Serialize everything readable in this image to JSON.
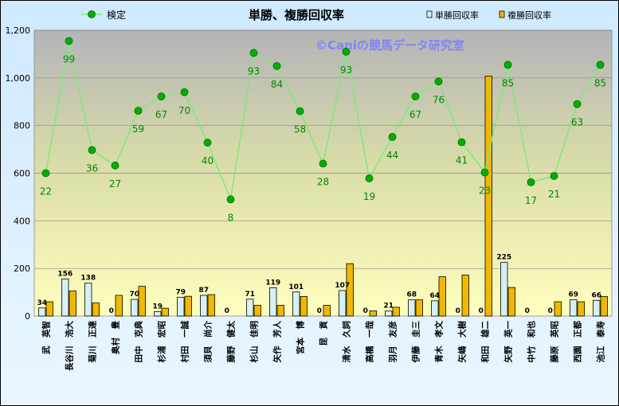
{
  "chart_data": {
    "type": "bar+line",
    "title": "単勝、複勝回収率",
    "watermark": "©Caniの競馬データ研究室",
    "categories": [
      "武　英智",
      "長谷川　浩大",
      "菊川　正達",
      "奥村　豊",
      "田中　克典",
      "杉浦　宏昭",
      "村田　一誠",
      "須貝　尚介",
      "藤野　健太",
      "杉山　佳明",
      "矢作　芳人",
      "宮本　博",
      "昆　貢",
      "清水　久詞",
      "高橋　一哉",
      "羽月　友彦",
      "伊藤　圭三",
      "青木　孝文",
      "矢嶋　大樹",
      "和田　雄二",
      "矢野　英一",
      "中竹　和也",
      "藤原　英昭",
      "西園　正都",
      "池江　泰寿"
    ],
    "ylim": [
      0,
      1200
    ],
    "yticks": [
      0,
      200,
      400,
      600,
      800,
      1000,
      1200
    ],
    "ytick_labels": [
      "0",
      "200",
      "400",
      "600",
      "800",
      "1,000",
      "1,200"
    ],
    "grid": true,
    "legend_position": "top",
    "series": [
      {
        "name": "単勝回収率",
        "kind": "bar",
        "color": "#d6f0f6",
        "values": [
          34,
          156,
          138,
          0,
          70,
          19,
          79,
          87,
          0,
          71,
          119,
          101,
          0,
          107,
          0,
          21,
          68,
          64,
          0,
          0,
          225,
          0,
          0,
          69,
          66
        ],
        "labels": [
          "34",
          "156",
          "138",
          "0",
          "70",
          "19",
          "79",
          "87",
          "0",
          "71",
          "119",
          "101",
          "0",
          "107",
          "0",
          "21",
          "68",
          "64",
          "0",
          "0",
          "225",
          "0",
          "0",
          "69",
          "66"
        ]
      },
      {
        "name": "複勝回収率",
        "kind": "bar",
        "color": "#f0b800",
        "values": [
          60,
          105,
          55,
          87,
          125,
          33,
          83,
          90,
          0,
          45,
          45,
          82,
          45,
          220,
          22,
          37,
          68,
          165,
          172,
          1007,
          120,
          0,
          60,
          60,
          82
        ]
      },
      {
        "name": "検定",
        "kind": "line",
        "color": "#00b000",
        "line_color": "#7fe87f",
        "values": [
          600,
          1155,
          697,
          632,
          862,
          922,
          940,
          728,
          490,
          1105,
          1050,
          860,
          640,
          1110,
          578,
          752,
          922,
          985,
          730,
          603,
          1055,
          562,
          588,
          890,
          1055
        ],
        "labels": [
          "22",
          "99",
          "36",
          "27",
          "59",
          "67",
          "70",
          "40",
          "8",
          "93",
          "84",
          "58",
          "28",
          "93",
          "19",
          "44",
          "67",
          "76",
          "41",
          "23",
          "85",
          "17",
          "21",
          "63",
          "85"
        ]
      }
    ]
  }
}
